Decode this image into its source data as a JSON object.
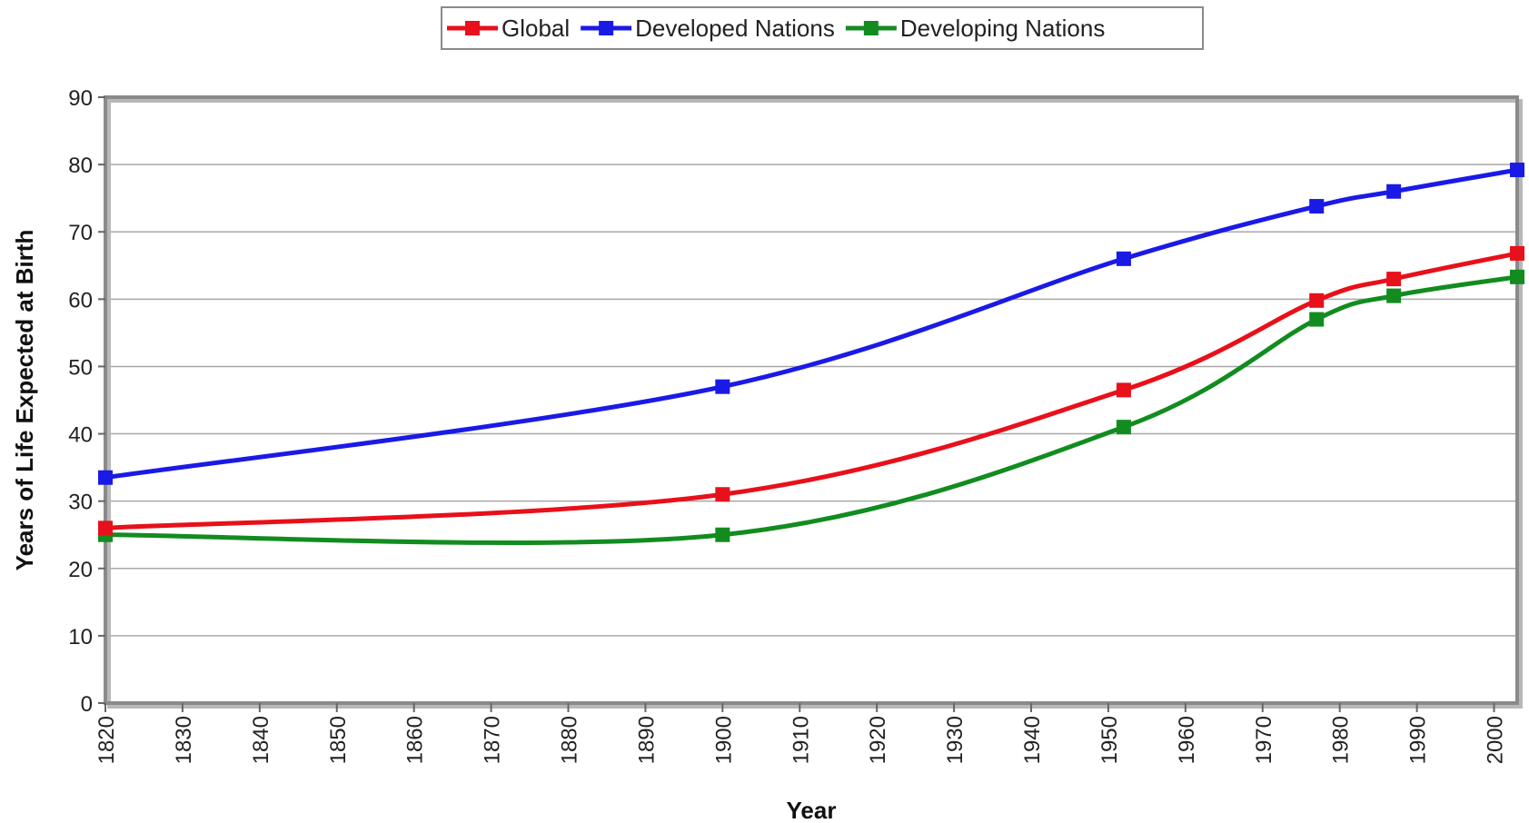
{
  "chart_data": {
    "type": "line",
    "title": "",
    "xlabel": "Year",
    "ylabel": "Years of Life Expected at Birth",
    "xlim": [
      1820,
      2003
    ],
    "ylim": [
      0,
      90
    ],
    "x_ticks": [
      1820,
      1830,
      1840,
      1850,
      1860,
      1870,
      1880,
      1890,
      1900,
      1910,
      1920,
      1930,
      1940,
      1950,
      1960,
      1970,
      1980,
      1990,
      2000
    ],
    "y_ticks": [
      0,
      10,
      20,
      30,
      40,
      50,
      60,
      70,
      80,
      90
    ],
    "grid": "horizontal",
    "legend": "top",
    "series": [
      {
        "name": "Global",
        "color": "#e8101a",
        "x": [
          1820,
          1900,
          1952,
          1977,
          1987,
          2003
        ],
        "y": [
          26,
          31,
          46.5,
          59.8,
          63,
          66.8
        ]
      },
      {
        "name": "Developed Nations",
        "color": "#1a1ae6",
        "x": [
          1820,
          1900,
          1952,
          1977,
          1987,
          2003
        ],
        "y": [
          33.5,
          47,
          66,
          73.8,
          76,
          79.2
        ]
      },
      {
        "name": "Developing Nations",
        "color": "#128c1f",
        "x": [
          1820,
          1900,
          1952,
          1977,
          1987,
          2003
        ],
        "y": [
          25,
          25,
          41,
          57,
          60.5,
          63.3
        ]
      }
    ]
  }
}
